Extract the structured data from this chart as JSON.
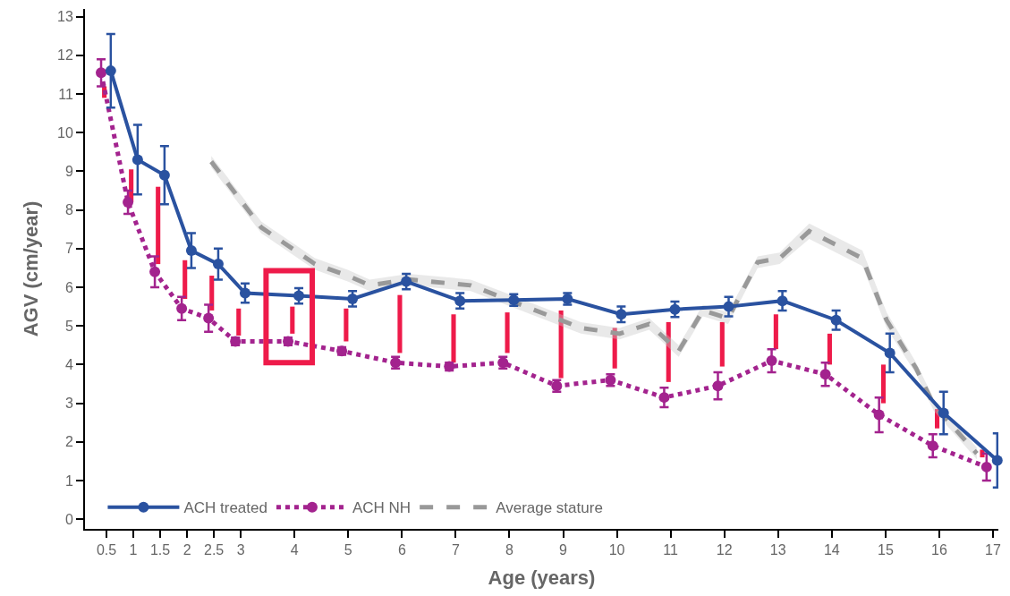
{
  "chart_data": {
    "type": "line",
    "xlabel": "Age (years)",
    "ylabel": "AGV (cm/year)",
    "xlim": [
      0.1,
      17.1
    ],
    "ylim": [
      -0.25,
      13.2
    ],
    "xticks": [
      0.5,
      1,
      1.5,
      2,
      2.5,
      3,
      4,
      5,
      6,
      7,
      8,
      9,
      10,
      11,
      12,
      13,
      14,
      15,
      16,
      17
    ],
    "yticks": [
      0,
      1,
      2,
      3,
      4,
      5,
      6,
      7,
      8,
      9,
      10,
      11,
      12,
      13
    ],
    "legend": "bottom left",
    "series": [
      {
        "type": "bar",
        "color": "#ee1b4a",
        "x": [
          0.46,
          0.96,
          1.46,
          1.96,
          2.46,
          2.96,
          3.96,
          4.96,
          5.96,
          6.96,
          7.96,
          8.96,
          9.96,
          10.96,
          11.96,
          12.96,
          13.96,
          14.96,
          15.96,
          16.8
        ],
        "base": [
          10.9,
          8.2,
          6.6,
          5.7,
          5.4,
          4.75,
          4.8,
          4.6,
          4.3,
          4.05,
          4.3,
          3.65,
          3.9,
          3.55,
          3.95,
          4.4,
          4.0,
          3.0,
          2.35,
          1.6
        ],
        "values": [
          0.3,
          0.85,
          2.0,
          1.0,
          0.9,
          0.7,
          0.7,
          0.85,
          1.5,
          1.25,
          1.05,
          1.75,
          1.05,
          1.55,
          1.15,
          0.9,
          0.8,
          1.0,
          0.5,
          0.2
        ]
      },
      {
        "name": "Average stature",
        "color": "#999999",
        "line_style": "dashed",
        "marker": "none",
        "x": [
          2.45,
          3.38,
          4.38,
          4.99,
          5.4,
          6.12,
          7.28,
          7.84,
          9.33,
          10.05,
          10.6,
          11.15,
          11.6,
          12.07,
          12.62,
          13.03,
          13.58,
          14.57,
          15.02,
          15.57,
          15.9,
          16.7
        ],
        "values": [
          9.25,
          7.55,
          6.6,
          6.3,
          6.05,
          6.2,
          6.05,
          5.75,
          4.95,
          4.8,
          5.05,
          4.35,
          5.4,
          5.2,
          6.65,
          6.75,
          7.45,
          6.75,
          5.15,
          3.9,
          2.95,
          1.7
        ],
        "lower": [
          9.1,
          7.4,
          6.45,
          6.15,
          5.9,
          6.05,
          5.9,
          5.6,
          4.8,
          4.65,
          4.9,
          4.2,
          5.25,
          5.05,
          6.5,
          6.6,
          7.25,
          6.55,
          4.95,
          3.75,
          2.8,
          1.55
        ],
        "upper": [
          9.4,
          7.7,
          6.75,
          6.45,
          6.2,
          6.35,
          6.2,
          5.9,
          5.1,
          4.95,
          5.2,
          4.5,
          5.55,
          5.35,
          6.8,
          6.9,
          7.65,
          6.95,
          5.35,
          4.05,
          3.1,
          1.85
        ]
      },
      {
        "name": "ACH NH",
        "color": "#a3238e",
        "line_style": "dotted",
        "marker": "circle",
        "x": [
          0.4,
          0.9,
          1.4,
          1.9,
          2.4,
          2.9,
          3.88,
          4.88,
          5.88,
          6.88,
          7.88,
          8.88,
          9.88,
          10.88,
          11.88,
          12.88,
          13.88,
          14.88,
          15.88,
          16.88
        ],
        "values": [
          11.55,
          8.2,
          6.4,
          5.45,
          5.2,
          4.6,
          4.6,
          4.35,
          4.05,
          3.95,
          4.05,
          3.45,
          3.6,
          3.15,
          3.45,
          4.1,
          3.75,
          2.7,
          1.9,
          1.35
        ],
        "errors": [
          0.35,
          0.3,
          0.4,
          0.3,
          0.35,
          0.1,
          0.1,
          0.1,
          0.15,
          0.1,
          0.15,
          0.15,
          0.15,
          0.25,
          0.35,
          0.3,
          0.3,
          0.45,
          0.3,
          0.35
        ]
      },
      {
        "name": "ACH treated",
        "color": "#2a52a0",
        "line_style": "solid",
        "marker": "circle",
        "x": [
          0.58,
          1.08,
          1.58,
          2.08,
          2.58,
          3.08,
          4.08,
          5.08,
          6.08,
          7.08,
          8.08,
          9.08,
          10.08,
          11.08,
          12.08,
          13.08,
          14.08,
          15.08,
          16.08,
          17.08
        ],
        "values": [
          11.6,
          9.3,
          8.9,
          6.95,
          6.6,
          5.85,
          5.78,
          5.7,
          6.15,
          5.65,
          5.67,
          5.7,
          5.3,
          5.43,
          5.5,
          5.65,
          5.15,
          4.3,
          2.75,
          1.52
        ],
        "errors": [
          0.95,
          0.9,
          0.75,
          0.45,
          0.4,
          0.25,
          0.2,
          0.2,
          0.2,
          0.2,
          0.15,
          0.15,
          0.2,
          0.2,
          0.25,
          0.25,
          0.25,
          0.5,
          0.55,
          0.7
        ]
      }
    ]
  }
}
